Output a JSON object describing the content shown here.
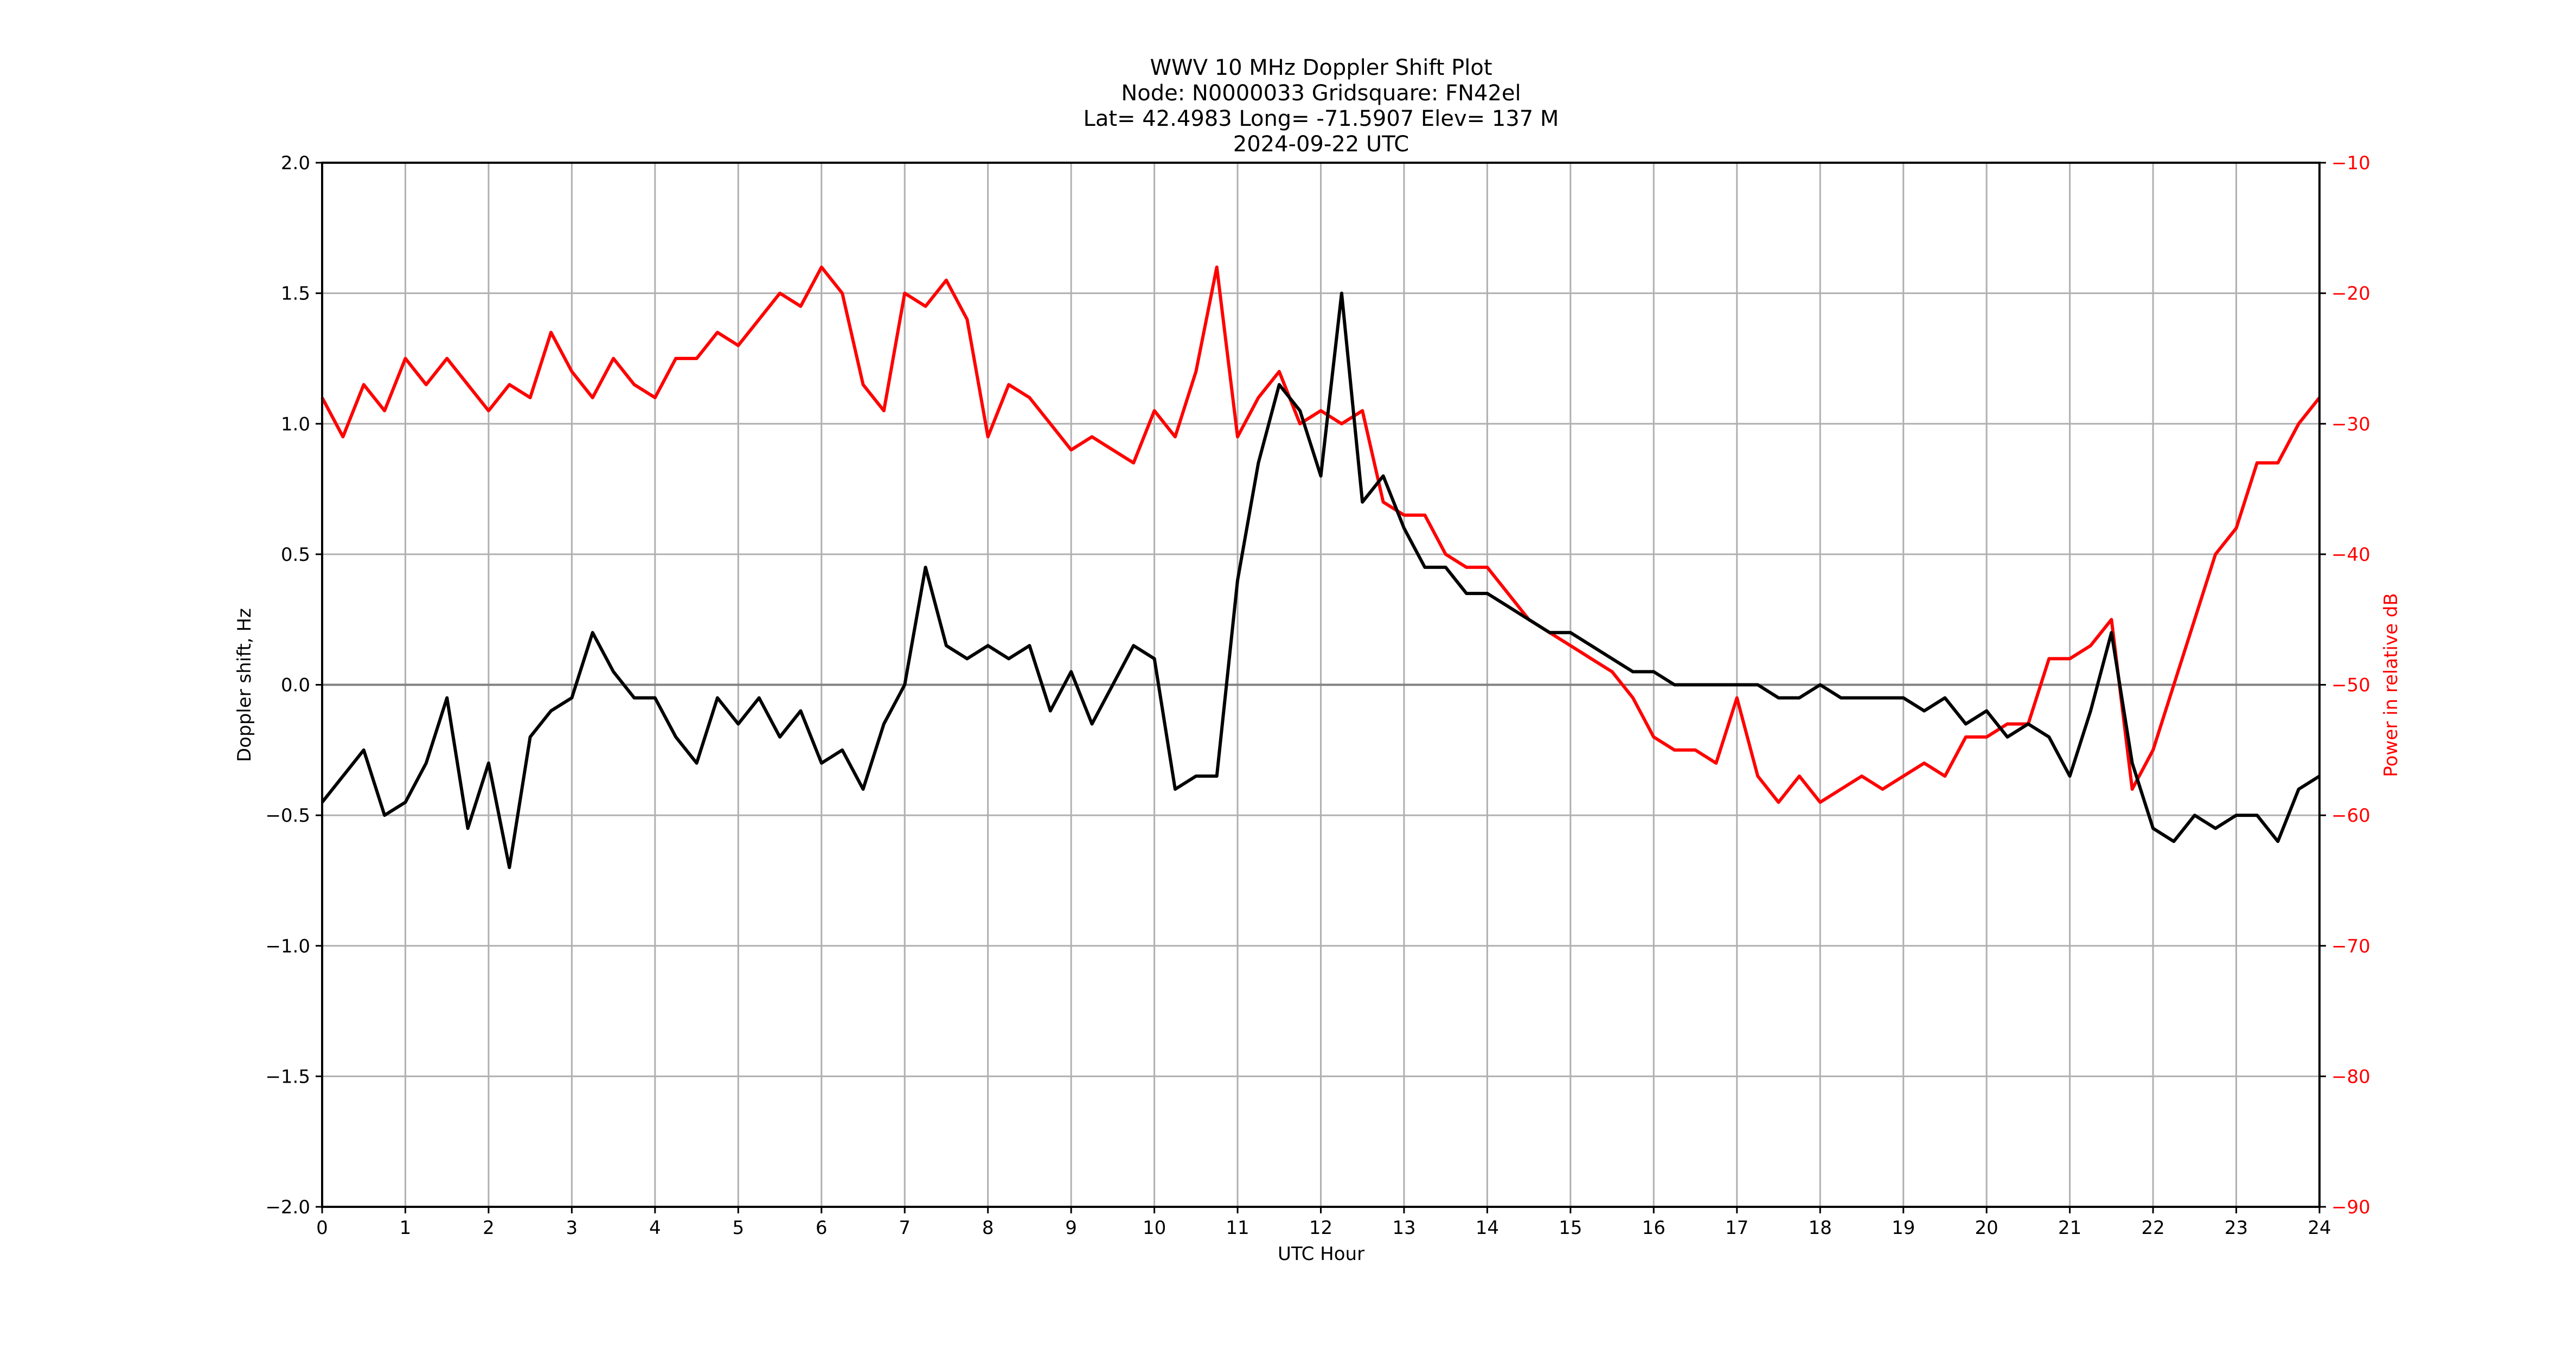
{
  "figure": {
    "title_lines": [
      "WWV 10 MHz Doppler Shift Plot",
      "Node:  N0000033     Gridsquare:  FN42el",
      "Lat= 42.4983    Long= -71.5907    Elev= 137 M",
      "2024-09-22  UTC"
    ],
    "xlabel": "UTC Hour",
    "ylabel_left": "Doppler shift, Hz",
    "ylabel_right": "Power in relative dB",
    "colors": {
      "doppler": "#000000",
      "power": "#ff0000",
      "grid": "#b0b0b0",
      "zero_line": "#808080"
    }
  },
  "chart_data": {
    "type": "line",
    "title": "WWV 10 MHz Doppler Shift Plot",
    "subtitle": "Node: N0000033  Gridsquare: FN42el  Lat= 42.4983  Long= -71.5907  Elev= 137 M  2024-09-22 UTC",
    "xlabel": "UTC Hour",
    "ylabel": "Doppler shift, Hz",
    "y2label": "Power in relative dB",
    "xlim": [
      0,
      24
    ],
    "ylim": [
      -2.0,
      2.0
    ],
    "y2lim": [
      -90,
      -10
    ],
    "xticks": [
      "0",
      "1",
      "2",
      "3",
      "4",
      "5",
      "6",
      "7",
      "8",
      "9",
      "10",
      "11",
      "12",
      "13",
      "14",
      "15",
      "16",
      "17",
      "18",
      "19",
      "20",
      "21",
      "22",
      "23",
      "24"
    ],
    "yticks": [
      "−2.0",
      "−1.5",
      "−1.0",
      "−0.5",
      "0.0",
      "0.5",
      "1.0",
      "1.5",
      "2.0"
    ],
    "y2ticks": [
      "−90",
      "−80",
      "−70",
      "−60",
      "−50",
      "−40",
      "−30",
      "−20",
      "−10"
    ],
    "grid": true,
    "legend": null,
    "x": [
      0,
      0.25,
      0.5,
      0.75,
      1,
      1.25,
      1.5,
      1.75,
      2,
      2.25,
      2.5,
      2.75,
      3,
      3.25,
      3.5,
      3.75,
      4,
      4.25,
      4.5,
      4.75,
      5,
      5.25,
      5.5,
      5.75,
      6,
      6.25,
      6.5,
      6.75,
      7,
      7.25,
      7.5,
      7.75,
      8,
      8.25,
      8.5,
      8.75,
      9,
      9.25,
      9.5,
      9.75,
      10,
      10.25,
      10.5,
      10.75,
      11,
      11.25,
      11.5,
      11.75,
      12,
      12.25,
      12.5,
      12.75,
      13,
      13.25,
      13.5,
      13.75,
      14,
      14.25,
      14.5,
      14.75,
      15,
      15.25,
      15.5,
      15.75,
      16,
      16.25,
      16.5,
      16.75,
      17,
      17.25,
      17.5,
      17.75,
      18,
      18.25,
      18.5,
      18.75,
      19,
      19.25,
      19.5,
      19.75,
      20,
      20.25,
      20.5,
      20.75,
      21,
      21.25,
      21.5,
      21.75,
      22,
      22.25,
      22.5,
      22.75,
      23,
      23.25,
      23.5,
      23.75,
      24
    ],
    "series": [
      {
        "name": "Doppler shift (Hz)",
        "axis": "left",
        "color": "#000000",
        "values": [
          -0.45,
          -0.35,
          -0.25,
          -0.5,
          -0.45,
          -0.3,
          -0.05,
          -0.55,
          -0.3,
          -0.7,
          -0.2,
          -0.1,
          -0.05,
          0.2,
          0.05,
          -0.05,
          -0.05,
          -0.2,
          -0.3,
          -0.05,
          -0.15,
          -0.05,
          -0.2,
          -0.1,
          -0.3,
          -0.25,
          -0.4,
          -0.15,
          0.0,
          0.45,
          0.15,
          0.1,
          0.15,
          0.1,
          0.15,
          -0.1,
          0.05,
          -0.15,
          0.0,
          0.15,
          0.1,
          -0.4,
          -0.35,
          -0.35,
          0.4,
          0.85,
          1.15,
          1.05,
          0.8,
          1.5,
          0.7,
          0.8,
          0.6,
          0.45,
          0.45,
          0.35,
          0.35,
          0.3,
          0.25,
          0.2,
          0.2,
          0.15,
          0.1,
          0.05,
          0.05,
          0.0,
          0.0,
          0.0,
          0.0,
          0.0,
          -0.05,
          -0.05,
          0.0,
          -0.05,
          -0.05,
          -0.05,
          -0.05,
          -0.1,
          -0.05,
          -0.15,
          -0.1,
          -0.2,
          -0.15,
          -0.2,
          -0.35,
          -0.1,
          0.2,
          -0.3,
          -0.55,
          -0.6,
          -0.5,
          -0.55,
          -0.5,
          -0.5,
          -0.6,
          -0.4,
          -0.35
        ]
      },
      {
        "name": "Power (relative dB)",
        "axis": "right",
        "color": "#ff0000",
        "values": [
          -28,
          -31,
          -27,
          -29,
          -25,
          -27,
          -25,
          -27,
          -29,
          -27,
          -28,
          -23,
          -26,
          -28,
          -25,
          -27,
          -28,
          -25,
          -25,
          -23,
          -24,
          -22,
          -20,
          -21,
          -18,
          -20,
          -27,
          -29,
          -20,
          -21,
          -19,
          -22,
          -31,
          -27,
          -28,
          -30,
          -32,
          -31,
          -32,
          -33,
          -29,
          -31,
          -26,
          -18,
          -31,
          -28,
          -26,
          -30,
          -29,
          -30,
          -29,
          -36,
          -37,
          -37,
          -40,
          -41,
          -41,
          -43,
          -45,
          -46,
          -47,
          -48,
          -49,
          -51,
          -54,
          -55,
          -55,
          -56,
          -51,
          -57,
          -59,
          -57,
          -59,
          -58,
          -57,
          -58,
          -57,
          -56,
          -57,
          -54,
          -54,
          -53,
          -53,
          -48,
          -48,
          -47,
          -45,
          -58,
          -55,
          -50,
          -45,
          -40,
          -38,
          -33,
          -33,
          -30,
          -28
        ]
      }
    ]
  }
}
